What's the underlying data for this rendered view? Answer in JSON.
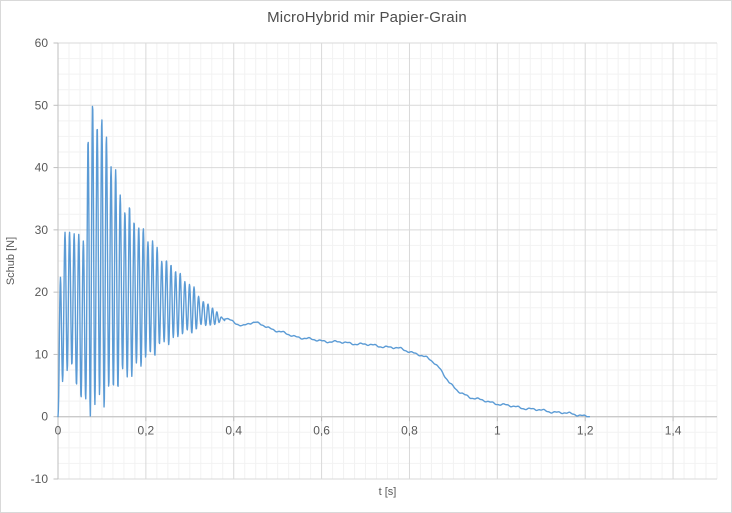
{
  "chart_data": {
    "type": "line",
    "title": "MicroHybrid mir Papier-Grain",
    "xlabel": "t [s]",
    "ylabel": "Schub [N]",
    "x_range": [
      0,
      1.5
    ],
    "y_range": [
      -10,
      60
    ],
    "x_major_unit": 0.2,
    "x_minor_unit": 0.025,
    "y_major_unit": 10,
    "y_minor_unit": 2.5,
    "grid": "major+minor",
    "legend": "none",
    "x_ticks": [
      {
        "value": 0.0,
        "label": "0"
      },
      {
        "value": 0.2,
        "label": "0,2"
      },
      {
        "value": 0.4,
        "label": "0,4"
      },
      {
        "value": 0.6,
        "label": "0,6"
      },
      {
        "value": 0.8,
        "label": "0,8"
      },
      {
        "value": 1.0,
        "label": "1"
      },
      {
        "value": 1.2,
        "label": "1,2"
      },
      {
        "value": 1.4,
        "label": "1,4"
      }
    ],
    "y_ticks": [
      {
        "value": 60,
        "label": "60"
      },
      {
        "value": 50,
        "label": "50"
      },
      {
        "value": 40,
        "label": "40"
      },
      {
        "value": 30,
        "label": "30"
      },
      {
        "value": 20,
        "label": "20"
      },
      {
        "value": 10,
        "label": "10"
      },
      {
        "value": 0,
        "label": "0"
      },
      {
        "value": -10,
        "label": "-10"
      }
    ],
    "colors": {
      "line": "#5B9BD5",
      "major_grid": "#D9D9D9",
      "minor_grid": "#F2F2F2",
      "axis": "#BFBFBF",
      "tick_labels": "#595959",
      "title": "#4D4D4D",
      "background": "#FFFFFF"
    },
    "series": [
      {
        "name": "Schub",
        "color": "#5B9BD5",
        "oscillation_phase": {
          "description": "high-frequency thrust oscillation between upper/lower envelopes, t 0 to 0.38 s",
          "period_s": 0.0105,
          "beat_period_s": 0.029,
          "envelope_points": [
            [
              0.0,
              0.0,
              0.0
            ],
            [
              0.003,
              20.0,
              1.0
            ],
            [
              0.006,
              25.0,
              3.0
            ],
            [
              0.012,
              28.0,
              5.0
            ],
            [
              0.018,
              31.0,
              6.5
            ],
            [
              0.025,
              30.5,
              8.0
            ],
            [
              0.035,
              31.0,
              6.0
            ],
            [
              0.045,
              29.0,
              4.0
            ],
            [
              0.055,
              30.5,
              1.5
            ],
            [
              0.062,
              30.0,
              0.3
            ],
            [
              0.068,
              46.0,
              0.0
            ],
            [
              0.072,
              50.3,
              0.0
            ],
            [
              0.085,
              50.4,
              0.0
            ],
            [
              0.095,
              50.2,
              0.3
            ],
            [
              0.103,
              48.5,
              1.0
            ],
            [
              0.112,
              45.5,
              1.8
            ],
            [
              0.122,
              42.5,
              2.8
            ],
            [
              0.132,
              39.5,
              3.9
            ],
            [
              0.142,
              37.0,
              4.8
            ],
            [
              0.152,
              35.0,
              5.4
            ],
            [
              0.162,
              33.8,
              5.9
            ],
            [
              0.172,
              32.8,
              6.4
            ],
            [
              0.182,
              31.8,
              7.1
            ],
            [
              0.2,
              30.0,
              8.5
            ],
            [
              0.215,
              28.5,
              9.5
            ],
            [
              0.23,
              27.0,
              10.5
            ],
            [
              0.245,
              25.5,
              11.3
            ],
            [
              0.26,
              24.5,
              12.0
            ],
            [
              0.275,
              23.5,
              12.6
            ],
            [
              0.29,
              22.3,
              13.1
            ],
            [
              0.305,
              21.0,
              13.6
            ],
            [
              0.32,
              19.8,
              14.1
            ],
            [
              0.335,
              18.5,
              14.5
            ],
            [
              0.35,
              17.5,
              14.8
            ],
            [
              0.365,
              16.6,
              15.0
            ],
            [
              0.38,
              15.9,
              15.3
            ]
          ]
        },
        "smooth_phase": {
          "description": "mean thrust curve, t 0.38 to 1.21 s",
          "points": [
            [
              0.38,
              15.8
            ],
            [
              0.4,
              15.2
            ],
            [
              0.42,
              14.6
            ],
            [
              0.435,
              15.0
            ],
            [
              0.45,
              15.05
            ],
            [
              0.465,
              14.8
            ],
            [
              0.48,
              14.3
            ],
            [
              0.5,
              13.7
            ],
            [
              0.52,
              13.3
            ],
            [
              0.54,
              12.9
            ],
            [
              0.56,
              12.6
            ],
            [
              0.58,
              12.35
            ],
            [
              0.6,
              12.2
            ],
            [
              0.63,
              12.0
            ],
            [
              0.66,
              11.85
            ],
            [
              0.69,
              11.65
            ],
            [
              0.72,
              11.45
            ],
            [
              0.75,
              11.2
            ],
            [
              0.78,
              10.9
            ],
            [
              0.8,
              10.5
            ],
            [
              0.82,
              10.0
            ],
            [
              0.84,
              9.4
            ],
            [
              0.855,
              8.8
            ],
            [
              0.87,
              7.7
            ],
            [
              0.88,
              6.6
            ],
            [
              0.89,
              5.5
            ],
            [
              0.9,
              4.7
            ],
            [
              0.91,
              4.1
            ],
            [
              0.925,
              3.6
            ],
            [
              0.94,
              3.1
            ],
            [
              0.96,
              2.7
            ],
            [
              0.98,
              2.4
            ],
            [
              1.0,
              2.1
            ],
            [
              1.03,
              1.7
            ],
            [
              1.06,
              1.4
            ],
            [
              1.09,
              1.1
            ],
            [
              1.12,
              0.85
            ],
            [
              1.15,
              0.6
            ],
            [
              1.18,
              0.35
            ],
            [
              1.2,
              0.15
            ],
            [
              1.21,
              0.05
            ]
          ]
        }
      }
    ]
  }
}
